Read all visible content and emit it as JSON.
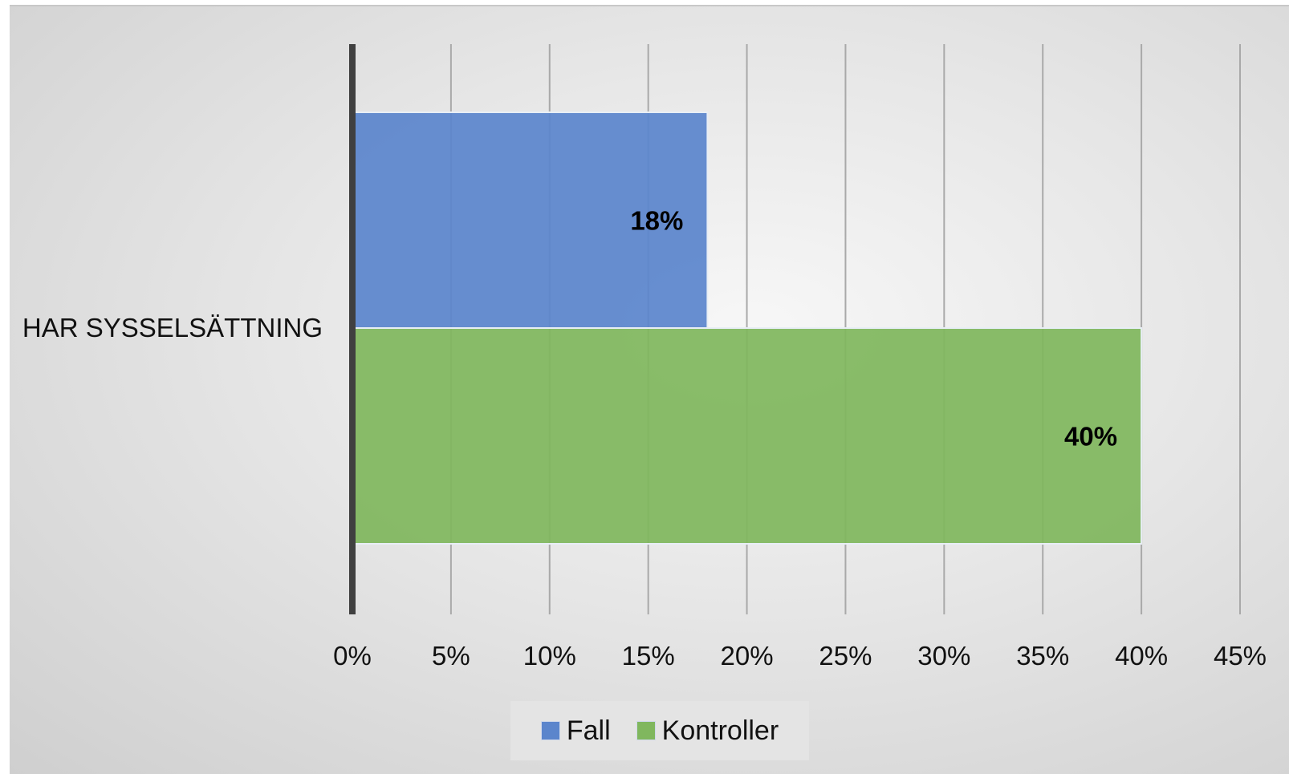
{
  "chart_data": {
    "type": "bar",
    "orientation": "horizontal",
    "categories": [
      "HAR SYSSELSÄTTNING"
    ],
    "series": [
      {
        "name": "Fall",
        "values": [
          0.18
        ],
        "color": "#5b85cc",
        "label": "18%"
      },
      {
        "name": "Kontroller",
        "values": [
          0.4
        ],
        "color": "#80b75e",
        "label": "40%"
      }
    ],
    "xlim": [
      0,
      0.45
    ],
    "xticks": [
      0,
      0.05,
      0.1,
      0.15,
      0.2,
      0.25,
      0.3,
      0.35,
      0.4,
      0.45
    ],
    "xtick_labels": [
      "0%",
      "5%",
      "10%",
      "15%",
      "20%",
      "25%",
      "30%",
      "35%",
      "40%",
      "45%"
    ],
    "grid": "vertical",
    "legend_position": "bottom",
    "title": "",
    "xlabel": "",
    "ylabel": ""
  }
}
